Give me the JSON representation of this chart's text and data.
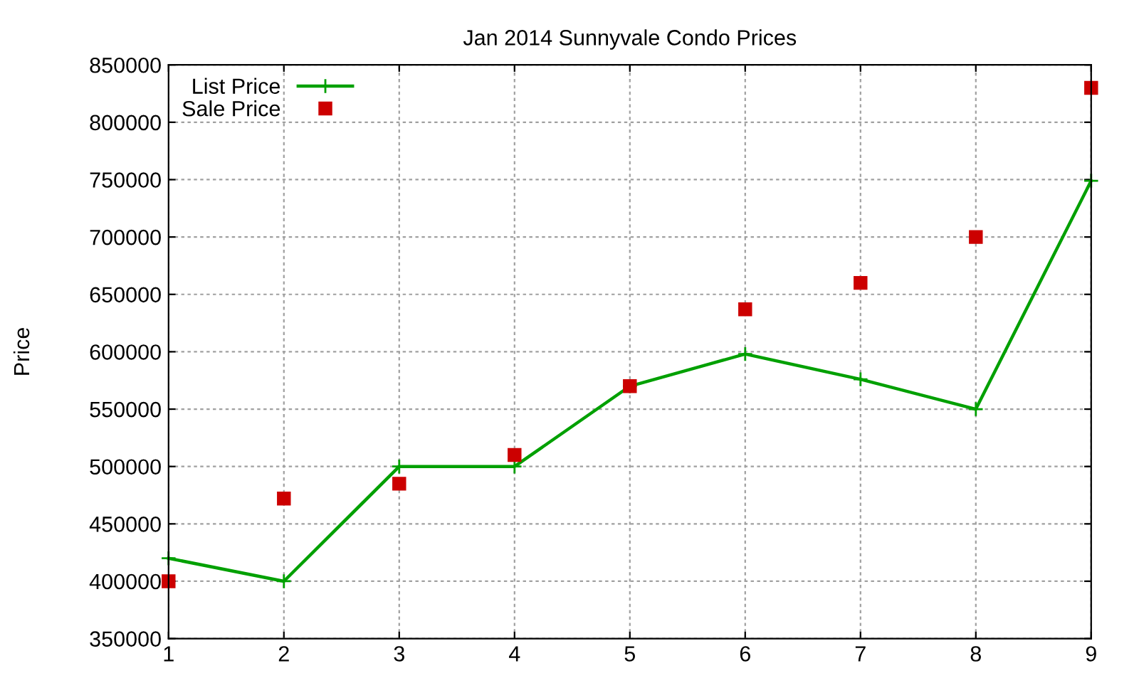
{
  "chart_data": {
    "type": "line",
    "title": "Jan 2014 Sunnyvale Condo Prices",
    "ylabel": "Price",
    "x": [
      1,
      2,
      3,
      4,
      5,
      6,
      7,
      8,
      9
    ],
    "series": [
      {
        "name": "List Price",
        "color": "#00a000",
        "marker": "cross",
        "values": [
          420000,
          400000,
          500000,
          500000,
          570000,
          598000,
          576000,
          550000,
          749000
        ]
      },
      {
        "name": "Sale Price",
        "color": "#cc0000",
        "type": "scatter",
        "marker": "square",
        "values": [
          400000,
          472000,
          485000,
          510000,
          570000,
          637000,
          660000,
          700000,
          830000
        ]
      }
    ],
    "xlim": [
      1,
      9
    ],
    "xticks": [
      1,
      2,
      3,
      4,
      5,
      6,
      7,
      8,
      9
    ],
    "ylim": [
      350000,
      850000
    ],
    "yticks": [
      350000,
      400000,
      450000,
      500000,
      550000,
      600000,
      650000,
      700000,
      750000,
      800000,
      850000
    ],
    "grid": true,
    "legend": "top left"
  }
}
